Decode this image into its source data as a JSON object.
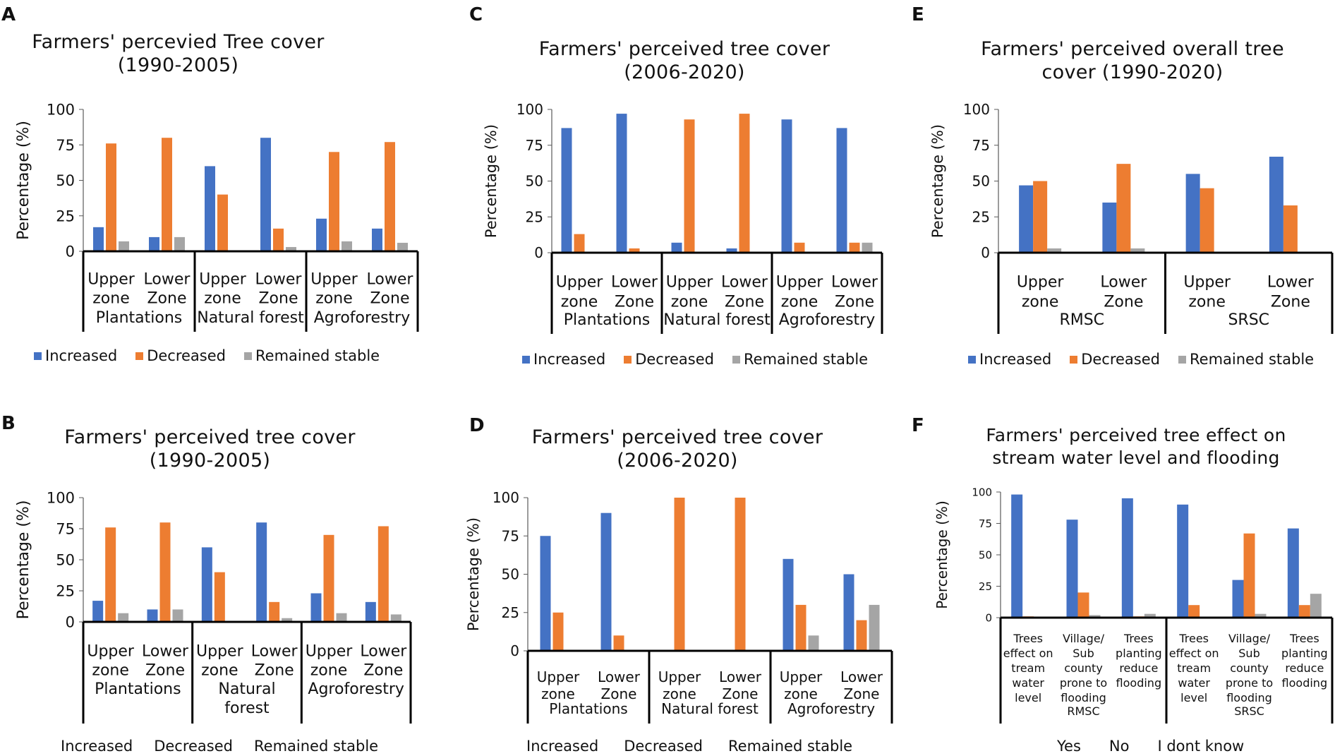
{
  "colors": {
    "increased": "#4472C4",
    "decreased": "#ED7D31",
    "stable": "#A5A5A5"
  },
  "chart_data": [
    {
      "id": "A",
      "type": "bar",
      "title": "Farmers' percevied  Tree cover\n(1990-2005)",
      "ylabel": "Percentage (%)",
      "ylim": [
        0,
        100
      ],
      "yticks": [
        0,
        25,
        50,
        75,
        100
      ],
      "categories": [
        {
          "label": "Upper\nzone",
          "group": 0
        },
        {
          "label": "Lower\nZone",
          "group": 0
        },
        {
          "label": "Upper\nzone",
          "group": 1
        },
        {
          "label": "Lower\nZone",
          "group": 1
        },
        {
          "label": "Upper\nzone",
          "group": 2
        },
        {
          "label": "Lower\nZone",
          "group": 2
        }
      ],
      "groups": [
        "Plantations",
        "Natural forest",
        "Agroforestry"
      ],
      "series": [
        {
          "name": "Increased",
          "color": "#4472C4",
          "values": [
            17,
            10,
            60,
            80,
            23,
            16
          ]
        },
        {
          "name": "Decreased",
          "color": "#ED7D31",
          "values": [
            76,
            80,
            40,
            16,
            70,
            77
          ]
        },
        {
          "name": "Remained stable",
          "color": "#A5A5A5",
          "values": [
            7,
            10,
            0,
            3,
            7,
            6
          ]
        }
      ],
      "legend_swatches": true
    },
    {
      "id": "B",
      "type": "bar",
      "title": "Farmers' perceived  tree cover\n(1990-2005)",
      "ylabel": "Percentage (%)",
      "ylim": [
        0,
        100
      ],
      "yticks": [
        0,
        25,
        50,
        75,
        100
      ],
      "categories": [
        {
          "label": "Upper\nzone",
          "group": 0
        },
        {
          "label": "Lower\nZone",
          "group": 0
        },
        {
          "label": "Upper\nzone",
          "group": 1
        },
        {
          "label": "Lower\nZone",
          "group": 1
        },
        {
          "label": "Upper\nzone",
          "group": 2
        },
        {
          "label": "Lower\nZone",
          "group": 2
        }
      ],
      "groups": [
        "Plantations",
        "Natural\nforest",
        "Agroforestry"
      ],
      "series": [
        {
          "name": "Increased",
          "color": "#4472C4",
          "values": [
            17,
            10,
            60,
            80,
            23,
            16
          ]
        },
        {
          "name": "Decreased",
          "color": "#ED7D31",
          "values": [
            76,
            80,
            40,
            16,
            70,
            77
          ]
        },
        {
          "name": "Remained stable",
          "color": "#A5A5A5",
          "values": [
            7,
            10,
            0,
            3,
            7,
            6
          ]
        }
      ],
      "legend_swatches": false
    },
    {
      "id": "C",
      "type": "bar",
      "title": "Farmers' perceived tree cover\n(2006-2020)",
      "ylabel": "Percentage (%)",
      "ylim": [
        0,
        100
      ],
      "yticks": [
        0,
        25,
        50,
        75,
        100
      ],
      "categories": [
        {
          "label": "Upper\nzone",
          "group": 0
        },
        {
          "label": "Lower\nZone",
          "group": 0
        },
        {
          "label": "Upper\nzone",
          "group": 1
        },
        {
          "label": "Lower\nZone",
          "group": 1
        },
        {
          "label": "Upper\nzone",
          "group": 2
        },
        {
          "label": "Lower\nZone",
          "group": 2
        }
      ],
      "groups": [
        "Plantations",
        "Natural forest",
        "Agroforestry"
      ],
      "series": [
        {
          "name": "Increased",
          "color": "#4472C4",
          "values": [
            87,
            97,
            7,
            3,
            93,
            87
          ]
        },
        {
          "name": "Decreased",
          "color": "#ED7D31",
          "values": [
            13,
            3,
            93,
            97,
            7,
            7
          ]
        },
        {
          "name": "Remained stable",
          "color": "#A5A5A5",
          "values": [
            0,
            0,
            0,
            0,
            0,
            7
          ]
        }
      ],
      "legend_swatches": true
    },
    {
      "id": "D",
      "type": "bar",
      "title": "Farmers' perceived  tree cover\n(2006-2020)",
      "ylabel": "Percentage (%)",
      "ylim": [
        0,
        100
      ],
      "yticks": [
        0,
        25,
        50,
        75,
        100
      ],
      "categories": [
        {
          "label": "Upper\nzone",
          "group": 0
        },
        {
          "label": "Lower\nZone",
          "group": 0
        },
        {
          "label": "Upper\nzone",
          "group": 1
        },
        {
          "label": "Lower\nZone",
          "group": 1
        },
        {
          "label": "Upper\nzone",
          "group": 2
        },
        {
          "label": "Lower\nZone",
          "group": 2
        }
      ],
      "groups": [
        "Plantations",
        "Natural forest",
        "Agroforestry"
      ],
      "series": [
        {
          "name": "Increased",
          "color": "#4472C4",
          "values": [
            75,
            90,
            0,
            0,
            60,
            50
          ]
        },
        {
          "name": "Decreased",
          "color": "#ED7D31",
          "values": [
            25,
            10,
            100,
            100,
            30,
            20
          ]
        },
        {
          "name": "Remained stable",
          "color": "#A5A5A5",
          "values": [
            0,
            0,
            0,
            0,
            10,
            30
          ]
        }
      ],
      "legend_swatches": false
    },
    {
      "id": "E",
      "type": "bar",
      "title": "Farmers' perceived  overall tree\ncover (1990-2020)",
      "ylabel": "Percentage (%)",
      "ylim": [
        0,
        100
      ],
      "yticks": [
        0,
        25,
        50,
        75,
        100
      ],
      "categories": [
        {
          "label": "Upper\nzone",
          "group": 0
        },
        {
          "label": "Lower\nZone",
          "group": 0
        },
        {
          "label": "Upper\nzone",
          "group": 1
        },
        {
          "label": "Lower\nZone",
          "group": 1
        }
      ],
      "groups": [
        "RMSC",
        "SRSC"
      ],
      "series": [
        {
          "name": "Increased",
          "color": "#4472C4",
          "values": [
            47,
            35,
            55,
            67
          ]
        },
        {
          "name": "Decreased",
          "color": "#ED7D31",
          "values": [
            50,
            62,
            45,
            33
          ]
        },
        {
          "name": "Remained stable",
          "color": "#A5A5A5",
          "values": [
            3,
            3,
            0,
            0
          ]
        }
      ],
      "legend_swatches": true
    },
    {
      "id": "F",
      "type": "bar",
      "title": "Farmers' perceived tree effect on\nstream water level and flooding",
      "ylabel": "Percentage (%)",
      "ylim": [
        0,
        100
      ],
      "yticks": [
        0,
        25,
        50,
        75,
        100
      ],
      "categories": [
        {
          "label": "Trees\neffect on\ntream\nwater\nlevel",
          "group": 0
        },
        {
          "label": "Village/\nSub\ncounty\nprone to\nflooding",
          "group": 0
        },
        {
          "label": "Trees\nplanting\nreduce\nflooding",
          "group": 0
        },
        {
          "label": "Trees\neffect on\ntream\nwater\nlevel",
          "group": 1
        },
        {
          "label": "Village/\nSub\ncounty\nprone to\nflooding",
          "group": 1
        },
        {
          "label": "Trees\nplanting\nreduce\nflooding",
          "group": 1
        }
      ],
      "groups": [
        "RMSC",
        "SRSC"
      ],
      "series": [
        {
          "name": "Yes",
          "color": "#4472C4",
          "values": [
            98,
            78,
            95,
            90,
            30,
            71
          ]
        },
        {
          "name": "No",
          "color": "#ED7D31",
          "values": [
            1,
            20,
            1,
            10,
            67,
            10
          ]
        },
        {
          "name": "I dont know",
          "color": "#A5A5A5",
          "values": [
            0,
            2,
            3,
            0,
            3,
            19
          ]
        }
      ],
      "legend_swatches": false
    }
  ]
}
